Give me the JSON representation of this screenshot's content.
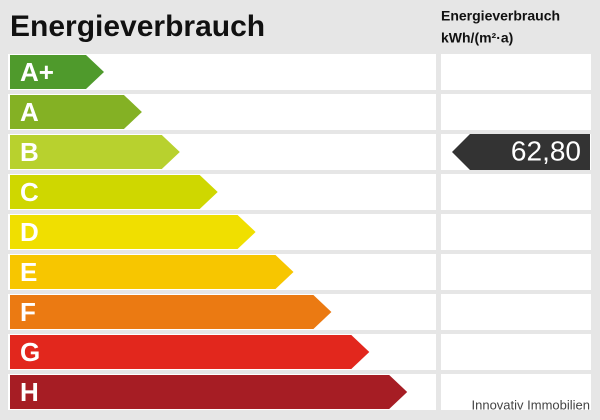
{
  "title": "Energieverbrauch",
  "column_header": {
    "line1": "Energieverbrauch",
    "line2": "kWh/(m²·a)"
  },
  "classes": [
    {
      "label": "A+",
      "color": "#4f9a2c"
    },
    {
      "label": "A",
      "color": "#84b124"
    },
    {
      "label": "B",
      "color": "#b8d12e",
      "value": "62,80"
    },
    {
      "label": "C",
      "color": "#cfd700"
    },
    {
      "label": "D",
      "color": "#f0df00"
    },
    {
      "label": "E",
      "color": "#f7c600"
    },
    {
      "label": "F",
      "color": "#eb7a12"
    },
    {
      "label": "G",
      "color": "#e2271d"
    },
    {
      "label": "H",
      "color": "#a61d24"
    }
  ],
  "footer": "Innovativ Immobilien"
}
